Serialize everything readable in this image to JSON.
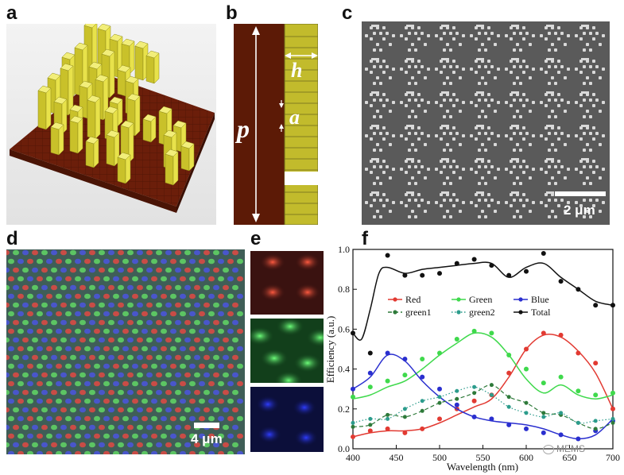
{
  "panels": {
    "a": {
      "label": "a"
    },
    "b": {
      "label": "b",
      "symbols": {
        "p": "p",
        "h": "h",
        "a": "a"
      }
    },
    "c": {
      "label": "c",
      "scale": "2 μm"
    },
    "d": {
      "label": "d",
      "scale": "4 μm"
    },
    "e": {
      "label": "e"
    },
    "f": {
      "label": "f"
    }
  },
  "watermark": {
    "text": "MEMS"
  },
  "colors": {
    "red": "#e23a32",
    "green": "#3fd94c",
    "blue": "#2a2fcf",
    "total": "#111111",
    "green1": "#2e7a3a",
    "green2": "#2c9c8c",
    "pillar": "#c9c12a",
    "substrate": "#6b1e0a"
  },
  "chart_data": {
    "type": "line",
    "title": "",
    "xlabel": "Wavelength (nm)",
    "ylabel": "Efficiency (a.u.)",
    "xlim": [
      400,
      700
    ],
    "ylim": [
      0.0,
      1.0
    ],
    "xticks": [
      400,
      450,
      500,
      550,
      600,
      650,
      700
    ],
    "yticks": [
      0.0,
      0.2,
      0.4,
      0.6,
      0.8,
      1.0
    ],
    "series": [
      {
        "name": "Red",
        "style": "fit-solid",
        "color": "#e23a32",
        "points": [
          [
            400,
            0.06
          ],
          [
            420,
            0.09
          ],
          [
            440,
            0.1
          ],
          [
            460,
            0.08
          ],
          [
            480,
            0.1
          ],
          [
            500,
            0.15
          ],
          [
            520,
            0.2
          ],
          [
            540,
            0.24
          ],
          [
            560,
            0.27
          ],
          [
            580,
            0.38
          ],
          [
            600,
            0.5
          ],
          [
            620,
            0.58
          ],
          [
            640,
            0.57
          ],
          [
            660,
            0.48
          ],
          [
            680,
            0.43
          ],
          [
            700,
            0.2
          ]
        ],
        "fit": [
          [
            400,
            0.06
          ],
          [
            420,
            0.08
          ],
          [
            440,
            0.09
          ],
          [
            460,
            0.09
          ],
          [
            480,
            0.1
          ],
          [
            500,
            0.13
          ],
          [
            520,
            0.17
          ],
          [
            540,
            0.21
          ],
          [
            560,
            0.25
          ],
          [
            580,
            0.36
          ],
          [
            600,
            0.5
          ],
          [
            620,
            0.57
          ],
          [
            640,
            0.56
          ],
          [
            660,
            0.49
          ],
          [
            680,
            0.38
          ],
          [
            700,
            0.2
          ]
        ]
      },
      {
        "name": "Green",
        "style": "fit-solid",
        "color": "#3fd94c",
        "points": [
          [
            400,
            0.26
          ],
          [
            420,
            0.31
          ],
          [
            440,
            0.34
          ],
          [
            460,
            0.37
          ],
          [
            480,
            0.45
          ],
          [
            500,
            0.48
          ],
          [
            520,
            0.55
          ],
          [
            540,
            0.59
          ],
          [
            560,
            0.58
          ],
          [
            580,
            0.47
          ],
          [
            600,
            0.4
          ],
          [
            620,
            0.33
          ],
          [
            640,
            0.36
          ],
          [
            660,
            0.29
          ],
          [
            680,
            0.27
          ],
          [
            700,
            0.28
          ]
        ],
        "fit": [
          [
            400,
            0.25
          ],
          [
            420,
            0.27
          ],
          [
            440,
            0.31
          ],
          [
            460,
            0.34
          ],
          [
            480,
            0.4
          ],
          [
            500,
            0.47
          ],
          [
            520,
            0.53
          ],
          [
            540,
            0.58
          ],
          [
            560,
            0.56
          ],
          [
            580,
            0.47
          ],
          [
            600,
            0.35
          ],
          [
            620,
            0.28
          ],
          [
            640,
            0.32
          ],
          [
            660,
            0.27
          ],
          [
            680,
            0.25
          ],
          [
            700,
            0.27
          ]
        ]
      },
      {
        "name": "Blue",
        "style": "fit-solid",
        "color": "#2a2fcf",
        "points": [
          [
            400,
            0.3
          ],
          [
            420,
            0.38
          ],
          [
            440,
            0.48
          ],
          [
            460,
            0.45
          ],
          [
            480,
            0.36
          ],
          [
            500,
            0.3
          ],
          [
            520,
            0.22
          ],
          [
            540,
            0.16
          ],
          [
            560,
            0.15
          ],
          [
            580,
            0.12
          ],
          [
            600,
            0.1
          ],
          [
            620,
            0.08
          ],
          [
            640,
            0.07
          ],
          [
            660,
            0.05
          ],
          [
            680,
            0.09
          ],
          [
            700,
            0.14
          ]
        ],
        "fit": [
          [
            400,
            0.3
          ],
          [
            420,
            0.36
          ],
          [
            440,
            0.47
          ],
          [
            460,
            0.44
          ],
          [
            480,
            0.34
          ],
          [
            500,
            0.26
          ],
          [
            520,
            0.2
          ],
          [
            540,
            0.16
          ],
          [
            560,
            0.14
          ],
          [
            580,
            0.13
          ],
          [
            600,
            0.12
          ],
          [
            620,
            0.1
          ],
          [
            640,
            0.07
          ],
          [
            660,
            0.05
          ],
          [
            680,
            0.07
          ],
          [
            700,
            0.15
          ]
        ]
      },
      {
        "name": "green1",
        "style": "dashed",
        "color": "#2e7a3a",
        "points": [
          [
            400,
            0.11
          ],
          [
            420,
            0.12
          ],
          [
            440,
            0.17
          ],
          [
            460,
            0.16
          ],
          [
            480,
            0.19
          ],
          [
            500,
            0.23
          ],
          [
            520,
            0.25
          ],
          [
            540,
            0.28
          ],
          [
            560,
            0.32
          ],
          [
            580,
            0.26
          ],
          [
            600,
            0.23
          ],
          [
            620,
            0.18
          ],
          [
            640,
            0.17
          ],
          [
            660,
            0.13
          ],
          [
            680,
            0.1
          ],
          [
            700,
            0.13
          ]
        ]
      },
      {
        "name": "green2",
        "style": "dotted",
        "color": "#2c9c8c",
        "points": [
          [
            400,
            0.13
          ],
          [
            420,
            0.15
          ],
          [
            440,
            0.15
          ],
          [
            460,
            0.2
          ],
          [
            480,
            0.24
          ],
          [
            500,
            0.26
          ],
          [
            520,
            0.29
          ],
          [
            540,
            0.31
          ],
          [
            560,
            0.27
          ],
          [
            580,
            0.21
          ],
          [
            600,
            0.18
          ],
          [
            620,
            0.16
          ],
          [
            640,
            0.18
          ],
          [
            660,
            0.13
          ],
          [
            680,
            0.14
          ],
          [
            700,
            0.15
          ]
        ]
      },
      {
        "name": "Total",
        "style": "fit-solid",
        "color": "#111111",
        "points": [
          [
            400,
            0.58
          ],
          [
            420,
            0.48
          ],
          [
            440,
            0.97
          ],
          [
            460,
            0.87
          ],
          [
            480,
            0.87
          ],
          [
            500,
            0.88
          ],
          [
            520,
            0.93
          ],
          [
            540,
            0.95
          ],
          [
            560,
            0.92
          ],
          [
            580,
            0.87
          ],
          [
            600,
            0.89
          ],
          [
            620,
            0.98
          ],
          [
            640,
            0.84
          ],
          [
            660,
            0.8
          ],
          [
            680,
            0.72
          ],
          [
            700,
            0.72
          ]
        ],
        "fit": [
          [
            400,
            0.58
          ],
          [
            410,
            0.55
          ],
          [
            420,
            0.7
          ],
          [
            430,
            0.88
          ],
          [
            440,
            0.91
          ],
          [
            460,
            0.88
          ],
          [
            480,
            0.9
          ],
          [
            500,
            0.91
          ],
          [
            520,
            0.92
          ],
          [
            540,
            0.93
          ],
          [
            560,
            0.93
          ],
          [
            580,
            0.86
          ],
          [
            600,
            0.91
          ],
          [
            620,
            0.93
          ],
          [
            640,
            0.86
          ],
          [
            660,
            0.8
          ],
          [
            680,
            0.74
          ],
          [
            700,
            0.72
          ]
        ]
      }
    ],
    "legend": {
      "position": "upper-center",
      "entries": [
        "Red",
        "Green",
        "Blue",
        "green1",
        "green2",
        "Total"
      ]
    }
  }
}
